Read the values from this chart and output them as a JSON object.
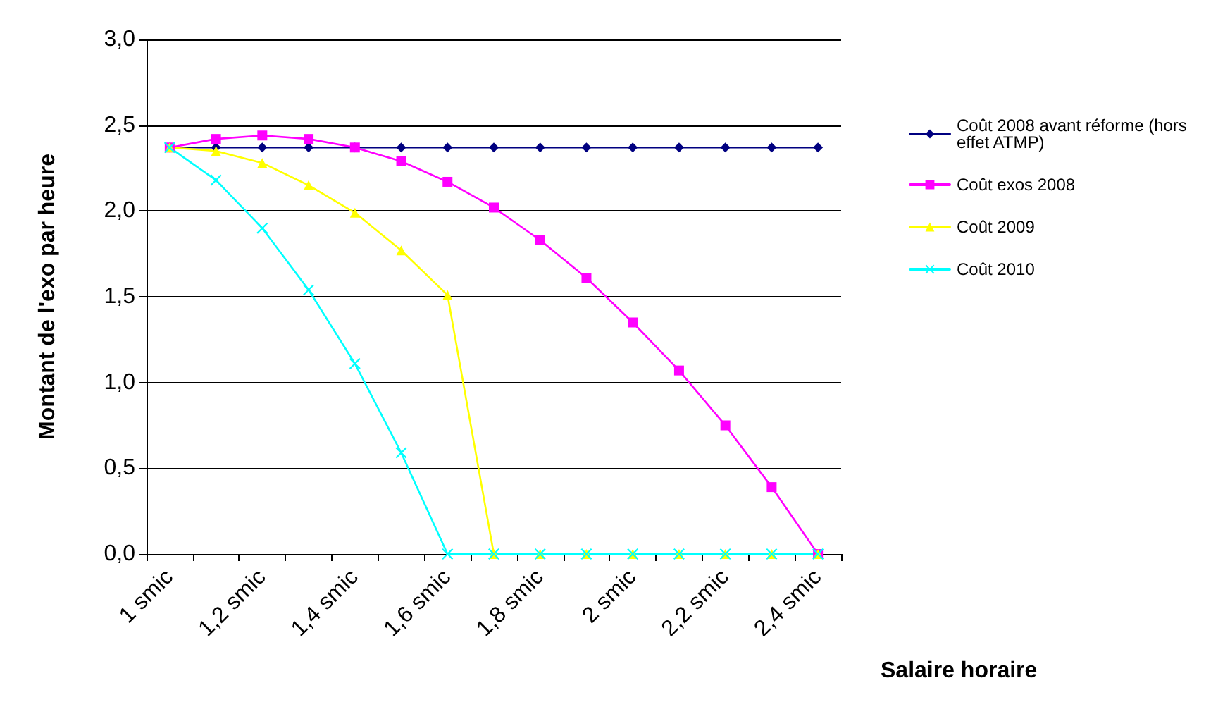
{
  "chart_data": {
    "type": "line",
    "xlabel": "Salaire horaire",
    "ylabel": "Montant de l'exo par heure",
    "categories": [
      "1 smic",
      null,
      "1,2 smic",
      null,
      "1,4 smic",
      null,
      "1,6 smic",
      null,
      "1,8 smic",
      null,
      "2 smic",
      null,
      "2,2 smic",
      null,
      "2,4 smic"
    ],
    "series": [
      {
        "name": "Coût 2008 avant réforme (hors effet ATMP)",
        "color": "#000080",
        "marker": "diamond",
        "values": [
          2.37,
          2.37,
          2.37,
          2.37,
          2.37,
          2.37,
          2.37,
          2.37,
          2.37,
          2.37,
          2.37,
          2.37,
          2.37,
          2.37,
          2.37
        ]
      },
      {
        "name": "Coût exos 2008",
        "color": "#ff00ff",
        "marker": "square",
        "values": [
          2.37,
          2.42,
          2.44,
          2.42,
          2.37,
          2.29,
          2.17,
          2.02,
          1.83,
          1.61,
          1.35,
          1.07,
          0.75,
          0.39,
          0
        ]
      },
      {
        "name": "Coût 2009",
        "color": "#ffff00",
        "marker": "triangle",
        "values": [
          2.37,
          2.35,
          2.28,
          2.15,
          1.99,
          1.77,
          1.51,
          0,
          0,
          0,
          0,
          0,
          0,
          0,
          0
        ]
      },
      {
        "name": "Coût 2010",
        "color": "#00ffff",
        "marker": "cross",
        "values": [
          2.37,
          2.18,
          1.9,
          1.54,
          1.11,
          0.59,
          0,
          0,
          0,
          0,
          0,
          0,
          0,
          0,
          0
        ]
      }
    ],
    "ylim": [
      0,
      3
    ],
    "yticks": [
      {
        "value": 0,
        "label": "0,0"
      },
      {
        "value": 0.5,
        "label": "0,5"
      },
      {
        "value": 1,
        "label": "1,0"
      },
      {
        "value": 1.5,
        "label": "1,5"
      },
      {
        "value": 2,
        "label": "2,0"
      },
      {
        "value": 2.5,
        "label": "2,5"
      },
      {
        "value": 3,
        "label": "3,0"
      }
    ],
    "grid": "y",
    "legend": "right",
    "line_style": "solid"
  }
}
